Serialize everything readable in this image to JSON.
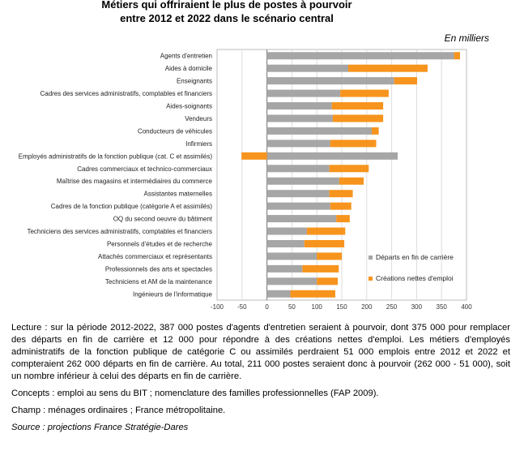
{
  "chart_data": {
    "type": "bar",
    "stacked": true,
    "orientation": "horizontal",
    "title": "Métiers qui offriraient le plus de postes à pourvoir entre 2012 et 2022 dans le scénario central",
    "title_lines": [
      "Métiers qui offriraient le plus de postes à pourvoir",
      "entre 2012 et 2022 dans le scénario central"
    ],
    "unit": "En milliers",
    "xlim": [
      -100,
      400
    ],
    "xticks": [
      -100,
      -50,
      0,
      50,
      100,
      150,
      200,
      250,
      300,
      350,
      400
    ],
    "grid": true,
    "legend_position": "bottom-right",
    "categories": [
      "Agents d'entretien",
      "Aides à domicile",
      "Enseignants",
      "Cadres des services administratifs, comptables et financiers",
      "Aides-soignants",
      "Vendeurs",
      "Conducteurs de véhicules",
      "Infirmiers",
      "Employés administratifs de la fonction publique (cat. C et assimilés)",
      "Cadres commerciaux et technico-commerciaux",
      "Maîtrise des magasins et intermédiaires du commerce",
      "Assistantes maternelles",
      "Cadres de la fonction publique (catégorie A et assimilés)",
      "OQ du second oeuvre du bâtiment",
      "Techniciens des services administratifs, comptables et financiers",
      "Personnels d'études et de recherche",
      "Attachés commerciaux et représentants",
      "Professionnels des arts et spectacles",
      "Techniciens et AM de la maintenance",
      "Ingénieurs de l'informatique"
    ],
    "series": [
      {
        "name": "Départs en fin de carrière",
        "color": "#a6a6a6",
        "values": [
          375,
          163,
          255,
          147,
          130,
          132,
          210,
          127,
          262,
          125,
          145,
          125,
          127,
          139,
          80,
          75,
          100,
          71,
          100,
          47
        ]
      },
      {
        "name": "Créations nettes d'emploi",
        "color": "#f7941d",
        "values": [
          12,
          159,
          46,
          97,
          103,
          101,
          14,
          92,
          -51,
          79,
          49,
          47,
          42,
          27,
          77,
          80,
          50,
          73,
          42,
          90
        ]
      }
    ]
  },
  "notes": [
    "Lecture : sur la période 2012-2022, 387 000 postes d'agents d'entretien seraient à pourvoir, dont 375 000 pour remplacer des départs en fin de carrière et 12 000 pour répondre à des créations nettes d'emploi. Les métiers d'employés administratifs de la fonction publique de catégorie C ou assimilés perdraient 51 000 emplois entre 2012 et 2022 et compteraient 262 000 départs en fin de carrière. Au total, 211 000 postes seraient donc à pourvoir (262 000 - 51 000), soit un nombre inférieur à celui des départs en fin de carrière.",
    "Concepts : emploi au sens du BIT ; nomenclature des familles professionnelles (FAP 2009).",
    "Champ : ménages ordinaires ; France métropolitaine."
  ],
  "source": "Source : projections France Stratégie-Dares"
}
